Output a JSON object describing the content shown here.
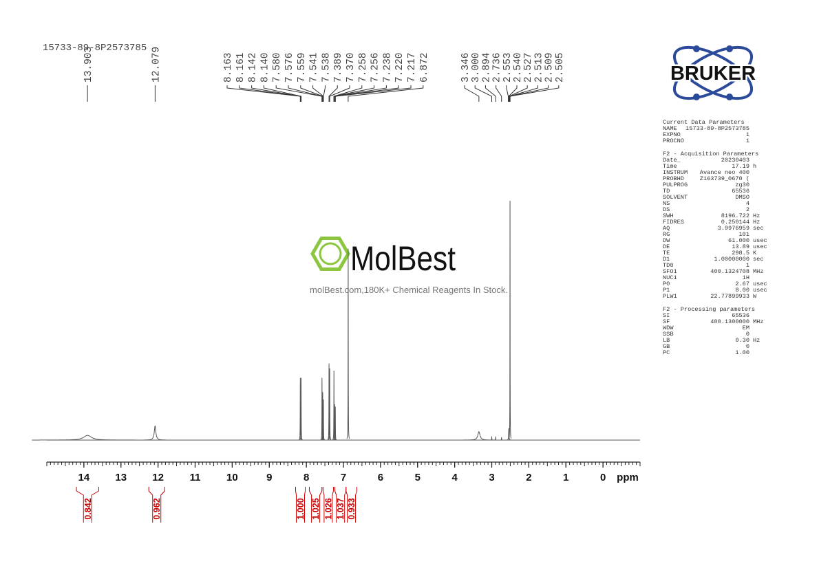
{
  "sample_id": "15733-89-8P2573785",
  "chart_data": {
    "type": "nmr",
    "x_label": "ppm",
    "xlim": [
      15,
      -1
    ],
    "xticks": [
      14,
      13,
      12,
      11,
      10,
      9,
      8,
      7,
      6,
      5,
      4,
      3,
      2,
      1,
      0
    ],
    "minor_xtick_step": 0.1,
    "color": "#555555",
    "label_color": "#555555",
    "integral_color": "#cc0000",
    "peaks": {
      "ppm": [
        13.9,
        12.08,
        8.163,
        8.142,
        7.578,
        7.559,
        7.54,
        7.389,
        7.37,
        7.256,
        7.238,
        7.219,
        6.872,
        3.346,
        3.0,
        2.894,
        2.736,
        2.54,
        2.507
      ],
      "height": [
        2,
        6,
        26,
        26,
        26,
        20,
        17,
        32,
        30,
        29,
        15,
        14,
        80,
        3.5,
        1.5,
        1.5,
        1.2,
        5,
        100
      ],
      "linewidth": [
        0.25,
        0.05,
        0.006,
        0.006,
        0.006,
        0.006,
        0.006,
        0.006,
        0.006,
        0.006,
        0.006,
        0.006,
        0.006,
        0.07,
        0.005,
        0.005,
        0.005,
        0.01,
        0.005
      ]
    },
    "peak_labels": [
      13.903,
      12.079,
      8.163,
      8.161,
      8.142,
      {
        "value": 8.14,
        "label": "8.140"
      },
      {
        "value": 7.58,
        "label": "7.580"
      },
      7.576,
      7.559,
      7.541,
      7.538,
      7.389,
      {
        "value": 7.37,
        "label": "7.370"
      },
      7.258,
      7.256,
      7.238,
      {
        "value": 7.22,
        "label": "7.220"
      },
      7.217,
      6.872,
      3.346,
      {
        "value": 3,
        "label": "3.000"
      },
      2.894,
      2.736,
      2.553,
      {
        "value": 2.54,
        "label": "2.540"
      },
      2.527,
      2.513,
      2.509,
      2.505
    ],
    "integrals": [
      {
        "range": [
          14.2,
          13.6
        ],
        "value": 0.842
      },
      {
        "range": [
          12.25,
          11.82
        ],
        "value": 0.962
      },
      {
        "range": [
          8.29,
          8.03
        ],
        "value": {
          "value": 1,
          "label": "1.000"
        }
      },
      {
        "range": [
          7.92,
          7.58
        ],
        "value": 1.025
      },
      {
        "range": [
          7.55,
          7.27
        ],
        "value": 1.026
      },
      {
        "range": [
          7.23,
          6.93
        ],
        "value": 1.037
      },
      {
        "range": [
          6.93,
          6.64
        ],
        "value": 0.933
      }
    ]
  },
  "watermark": {
    "brand": "MolBest",
    "tagline": "molBest.com,180K+ Chemical Reagents In Stock."
  },
  "logo": "BRUKER",
  "parameters": [
    {
      "title": "Current Data Parameters",
      "rows": [
        [
          "NAME",
          "15733-89-8P2573785"
        ],
        [
          "EXPNO",
          "1"
        ],
        [
          "PROCNO",
          "1"
        ]
      ]
    },
    {
      "title": "F2 - Acquisition Parameters",
      "rows": [
        [
          "Date_",
          "20230403"
        ],
        [
          "Time",
          "17.19",
          "h"
        ],
        [
          "INSTRUM",
          "Avance neo 400"
        ],
        [
          "PROBHD",
          "Z163739_0670 ("
        ],
        [
          "PULPROG",
          "zg30"
        ],
        [
          "TD",
          "65536"
        ],
        [
          "SOLVENT",
          "DMSO"
        ],
        [
          "NS",
          "4"
        ],
        [
          "DS",
          "2"
        ],
        [
          "SWH",
          "8196.722",
          "Hz"
        ],
        [
          "FIDRES",
          "0.250144",
          "Hz"
        ],
        [
          "AQ",
          "3.9976959",
          "sec"
        ],
        [
          "RG",
          "101"
        ],
        [
          "DW",
          "61.000",
          "usec"
        ],
        [
          "DE",
          "13.89",
          "usec"
        ],
        [
          "TE",
          "298.5",
          "K"
        ],
        [
          "D1",
          "1.00000000",
          "sec"
        ],
        [
          "TD0",
          "1"
        ],
        [
          "SFO1",
          "400.1324708",
          "MHz"
        ],
        [
          "NUC1",
          "1H"
        ],
        [
          "P0",
          "2.67",
          "usec"
        ],
        [
          "P1",
          "8.00",
          "usec"
        ],
        [
          "PLW1",
          "22.77899933",
          "W"
        ]
      ]
    },
    {
      "title": "F2 - Processing parameters",
      "rows": [
        [
          "SI",
          "65536"
        ],
        [
          "SF",
          "400.1300000",
          "MHz"
        ],
        [
          "WDW",
          "EM"
        ],
        [
          "SSB",
          "0"
        ],
        [
          "LB",
          "0.30",
          "Hz"
        ],
        [
          "GB",
          "0"
        ],
        [
          "PC",
          "1.00"
        ]
      ]
    }
  ]
}
